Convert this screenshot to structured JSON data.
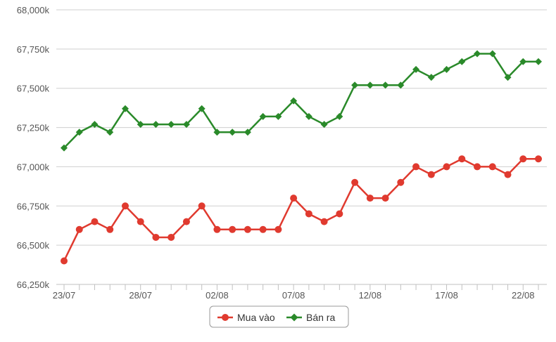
{
  "chart_data": {
    "type": "line",
    "title": "",
    "xlabel": "",
    "ylabel": "",
    "x": [
      "23/07",
      "24/07",
      "25/07",
      "26/07",
      "27/07",
      "28/07",
      "29/07",
      "30/07",
      "31/07",
      "01/08",
      "02/08",
      "03/08",
      "04/08",
      "05/08",
      "06/08",
      "07/08",
      "08/08",
      "09/08",
      "10/08",
      "11/08",
      "12/08",
      "13/08",
      "14/08",
      "15/08",
      "16/08",
      "17/08",
      "18/08",
      "19/08",
      "20/08",
      "21/08",
      "22/08",
      "23/08"
    ],
    "x_tick_labels": [
      "23/07",
      "28/07",
      "02/08",
      "07/08",
      "12/08",
      "17/08",
      "22/08"
    ],
    "y_tick_labels": [
      "66,250k",
      "66,500k",
      "66,750k",
      "67,000k",
      "67,250k",
      "67,500k",
      "67,750k",
      "68,000k"
    ],
    "ylim": [
      66250,
      68000
    ],
    "grid": "horizontal",
    "legend_position": "bottom-center",
    "series": [
      {
        "name": "Mua vào",
        "color": "#e03a2f",
        "marker": "circle",
        "values": [
          66400,
          66600,
          66650,
          66600,
          66750,
          66650,
          66550,
          66550,
          66650,
          66750,
          66600,
          66600,
          66600,
          66600,
          66600,
          66800,
          66700,
          66650,
          66700,
          66900,
          66800,
          66800,
          66900,
          67000,
          66950,
          67000,
          67050,
          67000,
          67000,
          66950,
          67050,
          67050
        ]
      },
      {
        "name": "Bán ra",
        "color": "#2a8a2a",
        "marker": "diamond",
        "values": [
          67120,
          67220,
          67270,
          67220,
          67370,
          67270,
          67270,
          67270,
          67270,
          67370,
          67220,
          67220,
          67220,
          67320,
          67320,
          67420,
          67320,
          67270,
          67320,
          67520,
          67520,
          67520,
          67520,
          67620,
          67570,
          67620,
          67670,
          67720,
          67720,
          67570,
          67670,
          67670
        ]
      }
    ]
  }
}
